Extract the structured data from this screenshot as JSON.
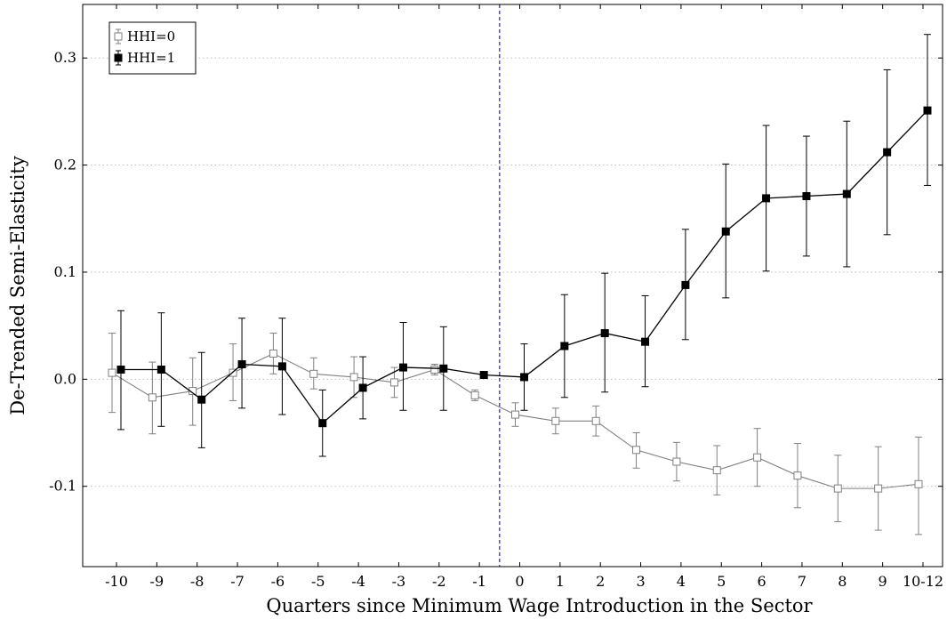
{
  "chart_data": {
    "type": "line",
    "title": "",
    "xlabel": "Quarters since Minimum Wage Introduction in the Sector",
    "ylabel": "De-Trended Semi-Elasticity",
    "categories": [
      "-10",
      "-9",
      "-8",
      "-7",
      "-6",
      "-5",
      "-4",
      "-3",
      "-2",
      "-1",
      "0",
      "1",
      "2",
      "3",
      "4",
      "5",
      "6",
      "7",
      "8",
      "9",
      "10-12"
    ],
    "ylim": [
      -0.175,
      0.35
    ],
    "yticks": [
      -0.1,
      0.0,
      0.1,
      0.2,
      0.3
    ],
    "ytick_labels": [
      "-0.1",
      "0.0",
      "0.1",
      "0.2",
      "0.3"
    ],
    "grid": "horizontal-dotted",
    "legend_position": "top-left",
    "vertical_line_between": [
      "-1",
      "0"
    ],
    "series": [
      {
        "name": "HHI=0",
        "color": "#808080",
        "marker": "open-square",
        "values": [
          0.006,
          -0.017,
          -0.011,
          0.006,
          0.024,
          0.005,
          0.002,
          -0.003,
          0.009,
          -0.015,
          -0.033,
          -0.039,
          -0.039,
          -0.066,
          -0.077,
          -0.085,
          -0.073,
          -0.09,
          -0.102,
          -0.102,
          -0.098
        ],
        "lower": [
          -0.031,
          -0.051,
          -0.043,
          -0.02,
          0.005,
          -0.009,
          -0.017,
          -0.017,
          0.004,
          -0.02,
          -0.044,
          -0.051,
          -0.053,
          -0.083,
          -0.095,
          -0.108,
          -0.1,
          -0.12,
          -0.133,
          -0.141,
          -0.145
        ],
        "upper": [
          0.043,
          0.016,
          0.02,
          0.033,
          0.043,
          0.02,
          0.021,
          0.011,
          0.014,
          -0.01,
          -0.022,
          -0.027,
          -0.025,
          -0.05,
          -0.059,
          -0.062,
          -0.046,
          -0.06,
          -0.071,
          -0.063,
          -0.054
        ]
      },
      {
        "name": "HHI=1",
        "color": "#000000",
        "marker": "filled-square",
        "values": [
          0.009,
          0.009,
          -0.019,
          0.014,
          0.012,
          -0.041,
          -0.008,
          0.011,
          0.01,
          0.004,
          0.002,
          0.031,
          0.043,
          0.035,
          0.088,
          0.138,
          0.169,
          0.171,
          0.173,
          0.212,
          0.251
        ],
        "lower": [
          -0.047,
          -0.044,
          -0.064,
          -0.027,
          -0.033,
          -0.072,
          -0.037,
          -0.029,
          -0.029,
          0.004,
          -0.029,
          -0.017,
          -0.012,
          -0.007,
          0.037,
          0.076,
          0.101,
          0.115,
          0.105,
          0.135,
          0.181
        ],
        "upper": [
          0.064,
          0.062,
          0.025,
          0.057,
          0.057,
          -0.01,
          0.021,
          0.053,
          0.049,
          0.004,
          0.033,
          0.079,
          0.099,
          0.078,
          0.14,
          0.201,
          0.237,
          0.227,
          0.241,
          0.289,
          0.322
        ]
      }
    ]
  }
}
